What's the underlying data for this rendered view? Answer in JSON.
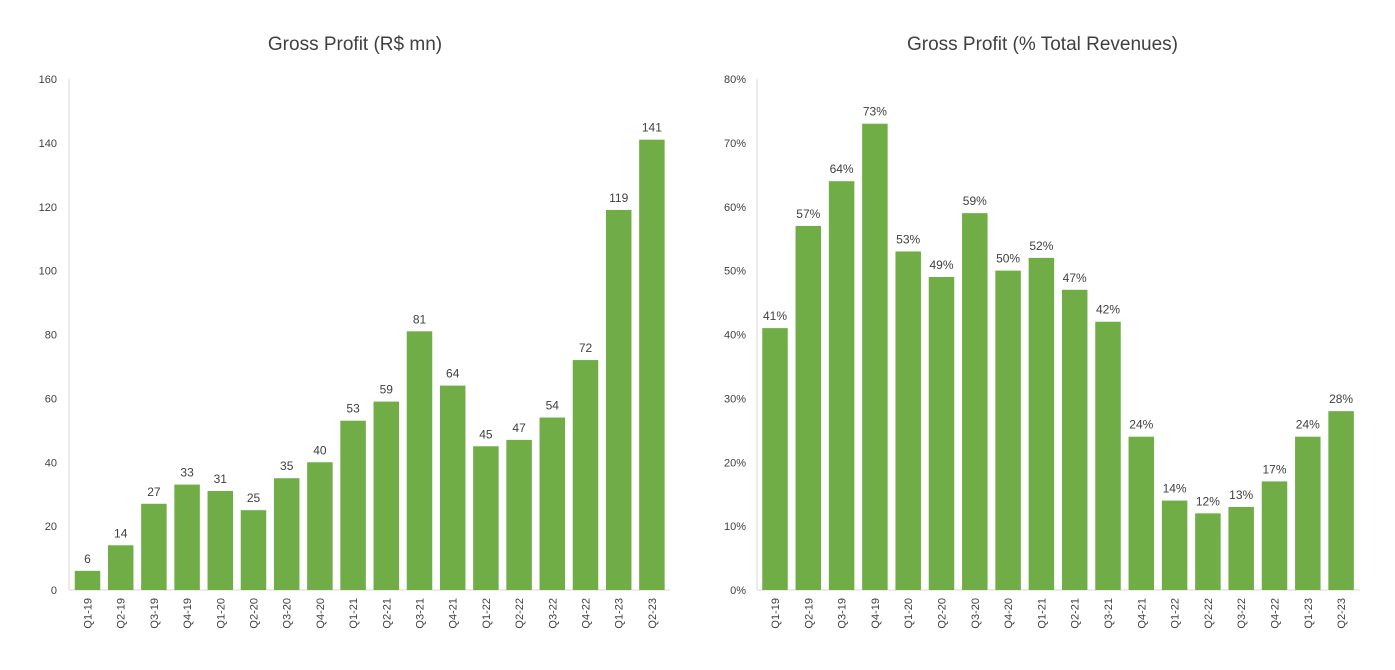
{
  "chart_data": [
    {
      "type": "bar",
      "title": "Gross Profit (R$ mn)",
      "xlabel": "",
      "ylabel": "",
      "ylim": [
        0,
        160
      ],
      "yticks": [
        0,
        20,
        40,
        60,
        80,
        100,
        120,
        140,
        160
      ],
      "ytick_labels": [
        "0",
        "20",
        "40",
        "60",
        "80",
        "100",
        "120",
        "140",
        "160"
      ],
      "categories": [
        "Q1-19",
        "Q2-19",
        "Q3-19",
        "Q4-19",
        "Q1-20",
        "Q2-20",
        "Q3-20",
        "Q4-20",
        "Q1-21",
        "Q2-21",
        "Q3-21",
        "Q4-21",
        "Q1-22",
        "Q2-22",
        "Q3-22",
        "Q4-22",
        "Q1-23",
        "Q2-23"
      ],
      "values": [
        6,
        14,
        27,
        33,
        31,
        25,
        35,
        40,
        53,
        59,
        81,
        64,
        45,
        47,
        54,
        72,
        119,
        141
      ],
      "data_labels": [
        "6",
        "14",
        "27",
        "33",
        "31",
        "25",
        "35",
        "40",
        "53",
        "59",
        "81",
        "64",
        "45",
        "47",
        "54",
        "72",
        "119",
        "141"
      ],
      "bar_color": "#70AD47",
      "grid": false
    },
    {
      "type": "bar",
      "title": "Gross Profit (% Total Revenues)",
      "xlabel": "",
      "ylabel": "",
      "ylim": [
        0,
        80
      ],
      "yticks": [
        0,
        10,
        20,
        30,
        40,
        50,
        60,
        70,
        80
      ],
      "ytick_labels": [
        "0%",
        "10%",
        "20%",
        "30%",
        "40%",
        "50%",
        "60%",
        "70%",
        "80%"
      ],
      "categories": [
        "Q1-19",
        "Q2-19",
        "Q3-19",
        "Q4-19",
        "Q1-20",
        "Q2-20",
        "Q3-20",
        "Q4-20",
        "Q1-21",
        "Q2-21",
        "Q3-21",
        "Q4-21",
        "Q1-22",
        "Q2-22",
        "Q3-22",
        "Q4-22",
        "Q1-23",
        "Q2-23"
      ],
      "values": [
        41,
        57,
        64,
        73,
        53,
        49,
        59,
        50,
        52,
        47,
        42,
        24,
        14,
        12,
        13,
        17,
        24,
        28
      ],
      "data_labels": [
        "41%",
        "57%",
        "64%",
        "73%",
        "53%",
        "49%",
        "59%",
        "50%",
        "52%",
        "47%",
        "42%",
        "24%",
        "14%",
        "12%",
        "13%",
        "17%",
        "24%",
        "28%"
      ],
      "bar_color": "#70AD47",
      "grid": false
    }
  ]
}
